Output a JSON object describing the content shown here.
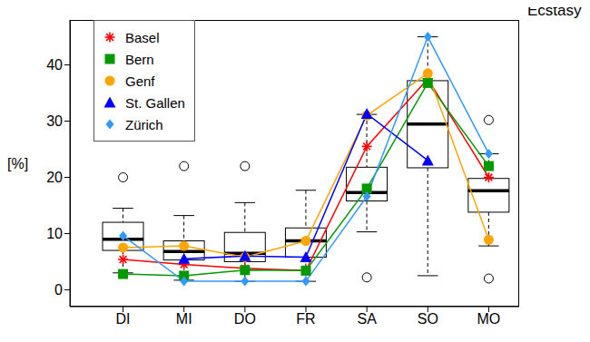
{
  "chart_data": {
    "type": "box",
    "title": "Ecstasy",
    "y_label": "[%]",
    "categories": [
      "DI",
      "MI",
      "DO",
      "FR",
      "SA",
      "SO",
      "MO"
    ],
    "boxes": {
      "min": [
        3,
        1.7,
        1.5,
        1.5,
        10.3,
        2.5,
        7.8
      ],
      "q1": [
        7,
        5.3,
        5,
        5.8,
        15.8,
        21.7,
        13.8
      ],
      "median": [
        9,
        6.8,
        6.5,
        8.7,
        17.3,
        29.5,
        17.6
      ],
      "q3": [
        12,
        8.7,
        10.2,
        11,
        21.8,
        37.2,
        19.8
      ],
      "max": [
        14.5,
        13.2,
        15.5,
        17.7,
        31.2,
        45,
        24.2
      ],
      "outliers": [
        [
          20
        ],
        [
          22
        ],
        [
          22
        ],
        [],
        [
          2.2
        ],
        [],
        [
          30.2,
          2
        ]
      ]
    },
    "series": [
      {
        "name": "Basel",
        "color": "#ff0000",
        "marker": "star",
        "type": "line",
        "values": [
          5.4,
          4.5,
          3.8,
          3.4,
          25.5,
          37.5,
          20
        ]
      },
      {
        "name": "Bern",
        "color": "#009900",
        "marker": "square",
        "type": "line",
        "values": [
          2.8,
          2.5,
          3.5,
          3.4,
          18,
          36.8,
          22
        ]
      },
      {
        "name": "Genf",
        "color": "#ffa500",
        "marker": "circle",
        "type": "line",
        "values": [
          7.5,
          7.8,
          5.8,
          8.7,
          31,
          38.5,
          8.9
        ]
      },
      {
        "name": "St. Gallen",
        "color": "#0000ff",
        "marker": "triangle",
        "type": "line",
        "values": [
          null,
          5.5,
          6,
          5.8,
          31.3,
          23,
          null
        ]
      },
      {
        "name": "Zürich",
        "color": "#3399ff",
        "marker": "diamond",
        "type": "line",
        "values": [
          9.6,
          1.5,
          1.5,
          1.5,
          16.6,
          45,
          24.2
        ]
      }
    ],
    "ylim": [
      -3,
      48
    ],
    "yticks": [
      0,
      10,
      20,
      30,
      40
    ],
    "legend": "upper left"
  }
}
